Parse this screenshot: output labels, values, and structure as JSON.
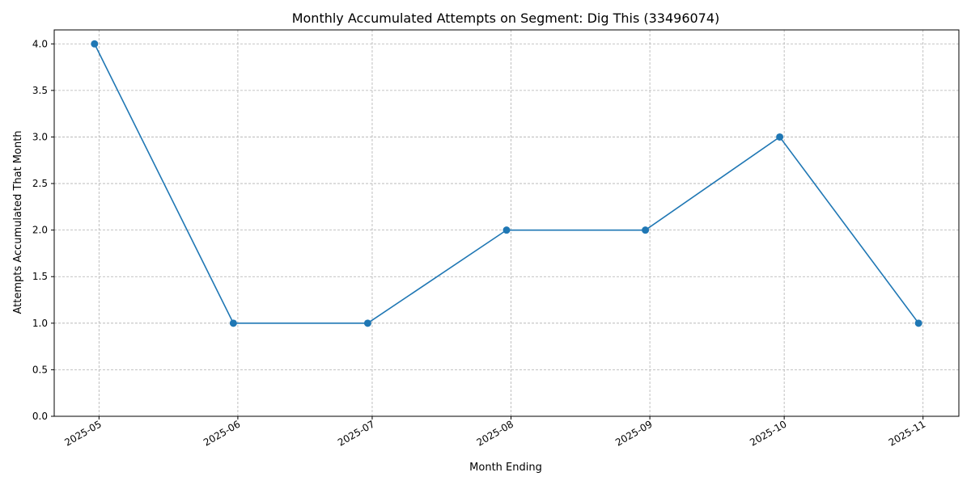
{
  "chart_data": {
    "type": "line",
    "title": "Monthly Accumulated Attempts on Segment: Dig This (33496074)",
    "xlabel": "Month Ending",
    "ylabel": "Attempts Accumulated That Month",
    "x": [
      "2025-04-30",
      "2025-05-31",
      "2025-06-30",
      "2025-07-31",
      "2025-08-31",
      "2025-09-30",
      "2025-10-31"
    ],
    "series": [
      {
        "values": [
          4,
          1,
          1,
          2,
          2,
          3,
          1
        ],
        "color": "#1f77b4"
      }
    ],
    "x_ticks": [
      "2025-05-01",
      "2025-06-01",
      "2025-07-01",
      "2025-08-01",
      "2025-09-01",
      "2025-10-01",
      "2025-11-01"
    ],
    "x_tick_labels": [
      "2025-05",
      "2025-06",
      "2025-07",
      "2025-08",
      "2025-09",
      "2025-10",
      "2025-11"
    ],
    "y_ticks": [
      0.0,
      0.5,
      1.0,
      1.5,
      2.0,
      2.5,
      3.0,
      3.5,
      4.0
    ],
    "y_tick_labels": [
      "0.0",
      "0.5",
      "1.0",
      "1.5",
      "2.0",
      "2.5",
      "3.0",
      "3.5",
      "4.0"
    ],
    "ylim": [
      0,
      4.15
    ],
    "xlim": [
      "2025-04-21",
      "2025-11-09"
    ],
    "grid": true
  }
}
